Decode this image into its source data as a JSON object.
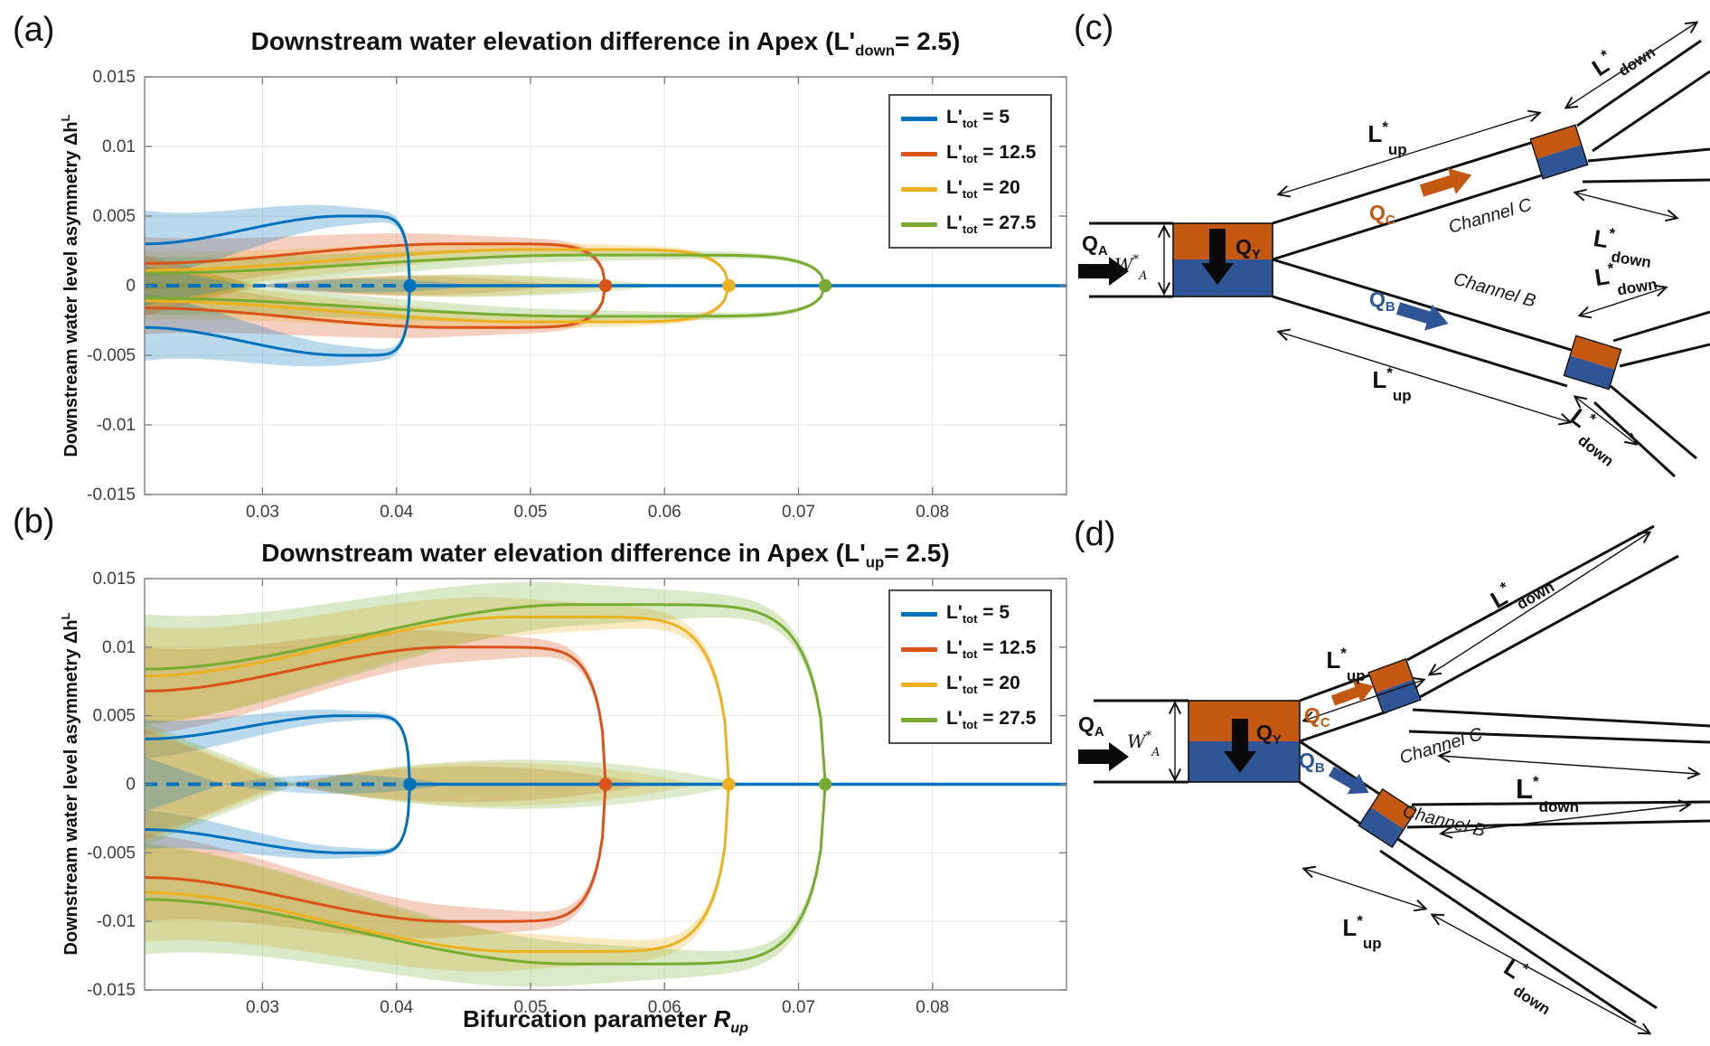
{
  "panel_labels": {
    "a": "(a)",
    "b": "(b)",
    "c": "(c)",
    "d": "(d)"
  },
  "colors": {
    "blue": "#0072BD",
    "orange": "#D95319",
    "yellow": "#EDB120",
    "green": "#77AC30",
    "box_orange": "#C55811",
    "box_blue": "#2F5597",
    "black_arrow": "#0a0a0a",
    "wall": "#111111"
  },
  "charts": {
    "a": {
      "title": {
        "t1": "Downstream water elevation difference in Apex (L",
        "prime": "'",
        "sub": "down",
        "t2": "= 2.5)"
      },
      "ylabel": {
        "t1": "Downstream water level asymmetry ",
        "sym": "Δh",
        "sup": "L"
      },
      "legend": {
        "items": [
          {
            "sym": "L'",
            "sub": "tot",
            "val": " = 5"
          },
          {
            "sym": "L'",
            "sub": "tot",
            "val": " = 12.5"
          },
          {
            "sym": "L'",
            "sub": "tot",
            "val": " = 20"
          },
          {
            "sym": "L'",
            "sub": "tot",
            "val": " = 27.5"
          }
        ]
      }
    },
    "b": {
      "title": {
        "t1": "Downstream water elevation difference in Apex (L",
        "prime": "'",
        "sub": "up",
        "t2": "= 2.5)"
      },
      "ylabel": {
        "t1": "Downstream water level asymmetry ",
        "sym": "Δh",
        "sup": "L"
      },
      "xlabel": {
        "t1": "Bifurcation parameter ",
        "sym": "R",
        "sub": "up"
      },
      "legend": {
        "items": [
          {
            "sym": "L'",
            "sub": "tot",
            "val": " = 5"
          },
          {
            "sym": "L'",
            "sub": "tot",
            "val": " = 12.5"
          },
          {
            "sym": "L'",
            "sub": "tot",
            "val": " = 20"
          },
          {
            "sym": "L'",
            "sub": "tot",
            "val": " = 27.5"
          }
        ]
      }
    }
  },
  "diagram_labels": {
    "L": "L",
    "star": "*",
    "up": "up",
    "down": "down",
    "Q": "Q",
    "subA": "A",
    "subY": "Y",
    "subC": "C",
    "subB": "B",
    "W": "W",
    "channelC": "Channel C",
    "channelB": "Channel B"
  },
  "chart_data": [
    {
      "id": "a",
      "type": "line",
      "title": "Downstream water elevation difference in Apex (L'_down = 2.5)",
      "xlabel": "",
      "ylabel": "Downstream water level asymmetry Δh^L",
      "xlim": [
        0.0212,
        0.09
      ],
      "ylim": [
        -0.015,
        0.015
      ],
      "xticks": [
        0.03,
        0.04,
        0.05,
        0.06,
        0.07,
        0.08
      ],
      "yticks": [
        -0.015,
        -0.01,
        -0.005,
        0,
        0.005,
        0.01,
        0.015
      ],
      "grid": true,
      "legend_position": "top-right",
      "symmetric_about_zero": true,
      "series": [
        {
          "name": "L'_tot = 5",
          "color": "#0072BD",
          "y_left": 0.003,
          "y_max": 0.005,
          "x_peak": 0.036,
          "x_bifurcation": 0.041,
          "band_halfwidth": 0.0024,
          "axis_cone": {
            "end": 0.029,
            "halfwidth": 0.0014
          },
          "axis_lens": {
            "start": 0.029,
            "end": 0.046,
            "halfwidth": 0.0005
          }
        },
        {
          "name": "L'_tot = 12.5",
          "color": "#D95319",
          "y_left": 0.0016,
          "y_max": 0.003,
          "x_peak": 0.044,
          "x_bifurcation": 0.0556,
          "band_halfwidth": 0.0019,
          "axis_cone": {
            "end": 0.0295,
            "halfwidth": 0.0022
          },
          "axis_lens": {
            "start": 0.0295,
            "end": 0.052,
            "halfwidth": 0.0007
          }
        },
        {
          "name": "L'_tot = 20",
          "color": "#EDB120",
          "y_left": 0.0011,
          "y_max": 0.0026,
          "x_peak": 0.05,
          "x_bifurcation": 0.0648,
          "band_halfwidth": 0.0014,
          "axis_cone": {
            "end": 0.03,
            "halfwidth": 0.0018
          },
          "axis_lens": {
            "start": 0.03,
            "end": 0.057,
            "halfwidth": 0.0008
          }
        },
        {
          "name": "L'_tot = 27.5",
          "color": "#77AC30",
          "y_left": 0.0009,
          "y_max": 0.0022,
          "x_peak": 0.054,
          "x_bifurcation": 0.072,
          "band_halfwidth": 0.0012,
          "axis_cone": {
            "end": 0.031,
            "halfwidth": 0.0014
          },
          "axis_lens": {
            "start": 0.031,
            "end": 0.06,
            "halfwidth": 0.0008
          }
        }
      ],
      "zero_line": {
        "color": "#0072BD",
        "dash_until": 0.041,
        "solid_to": 0.09
      },
      "bifurcation_points": [
        {
          "x": 0.041,
          "y": 0,
          "color": "#0072BD"
        },
        {
          "x": 0.0556,
          "y": 0,
          "color": "#D95319"
        },
        {
          "x": 0.0648,
          "y": 0,
          "color": "#EDB120"
        },
        {
          "x": 0.072,
          "y": 0,
          "color": "#77AC30"
        }
      ]
    },
    {
      "id": "b",
      "type": "line",
      "title": "Downstream water elevation difference in Apex (L'_up = 2.5)",
      "xlabel": "Bifurcation parameter R_up",
      "ylabel": "Downstream water level asymmetry Δh^L",
      "xlim": [
        0.0212,
        0.09
      ],
      "ylim": [
        -0.015,
        0.015
      ],
      "xticks": [
        0.03,
        0.04,
        0.05,
        0.06,
        0.07,
        0.08
      ],
      "yticks": [
        -0.015,
        -0.01,
        -0.005,
        0,
        0.005,
        0.01,
        0.015
      ],
      "grid": true,
      "legend_position": "top-right",
      "symmetric_about_zero": true,
      "series": [
        {
          "name": "L'_tot = 5",
          "color": "#0072BD",
          "y_left": 0.0033,
          "y_max": 0.005,
          "x_peak": 0.036,
          "x_bifurcation": 0.041,
          "band_halfwidth": 0.0014,
          "axis_cone": {
            "end": 0.027,
            "halfwidth": 0.002
          },
          "axis_lens": {
            "start": 0.027,
            "end": 0.044,
            "halfwidth": 0.0007
          }
        },
        {
          "name": "L'_tot = 12.5",
          "color": "#D95319",
          "y_left": 0.0068,
          "y_max": 0.01,
          "x_peak": 0.044,
          "x_bifurcation": 0.0556,
          "band_halfwidth": 0.0032,
          "axis_cone": {
            "end": 0.0315,
            "halfwidth": 0.004
          },
          "axis_lens": {
            "start": 0.0315,
            "end": 0.059,
            "halfwidth": 0.0013
          }
        },
        {
          "name": "L'_tot = 20",
          "color": "#EDB120",
          "y_left": 0.0079,
          "y_max": 0.0122,
          "x_peak": 0.049,
          "x_bifurcation": 0.0648,
          "band_halfwidth": 0.0036,
          "axis_cone": {
            "end": 0.032,
            "halfwidth": 0.0042
          },
          "axis_lens": {
            "start": 0.032,
            "end": 0.0625,
            "halfwidth": 0.0016
          }
        },
        {
          "name": "L'_tot = 27.5",
          "color": "#77AC30",
          "y_left": 0.0084,
          "y_max": 0.0131,
          "x_peak": 0.053,
          "x_bifurcation": 0.072,
          "band_halfwidth": 0.004,
          "axis_cone": {
            "end": 0.0325,
            "halfwidth": 0.0045
          },
          "axis_lens": {
            "start": 0.0325,
            "end": 0.066,
            "halfwidth": 0.0018
          }
        }
      ],
      "zero_line": {
        "color": "#0072BD",
        "dash_until": 0.041,
        "solid_to": 0.09
      },
      "bifurcation_points": [
        {
          "x": 0.041,
          "y": 0,
          "color": "#0072BD"
        },
        {
          "x": 0.0556,
          "y": 0,
          "color": "#D95319"
        },
        {
          "x": 0.0648,
          "y": 0,
          "color": "#EDB120"
        },
        {
          "x": 0.072,
          "y": 0,
          "color": "#77AC30"
        }
      ]
    }
  ]
}
